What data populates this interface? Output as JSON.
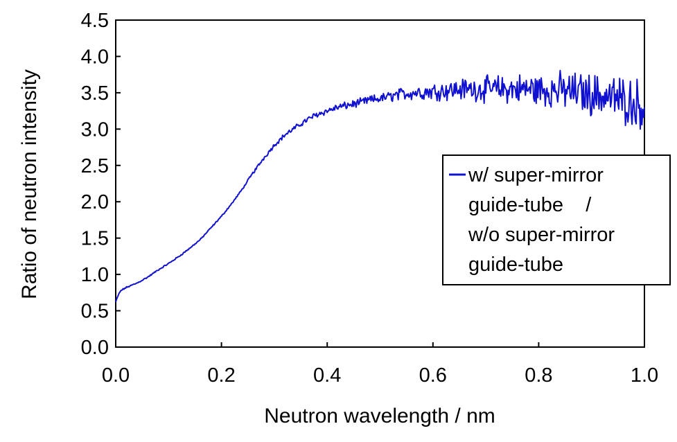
{
  "chart_data": {
    "type": "line",
    "title": "",
    "xlabel": "Neutron wavelength / nm",
    "ylabel": "Ratio of neutron intensity",
    "xlim": [
      0.0,
      1.0
    ],
    "ylim": [
      0.0,
      4.5
    ],
    "xticks": [
      "0.0",
      "0.2",
      "0.4",
      "0.6",
      "0.8",
      "1.0"
    ],
    "yticks": [
      "0.0",
      "0.5",
      "1.0",
      "1.5",
      "2.0",
      "2.5",
      "3.0",
      "3.5",
      "4.0",
      "4.5"
    ],
    "grid": false,
    "legend_position": "right",
    "legend_lines": [
      "w/ super-mirror",
      "guide-tube    /",
      "w/o super-mirror",
      "guide-tube"
    ],
    "series": [
      {
        "color": "#1010d0",
        "noise": "increases with wavelength",
        "x": [
          0.0,
          0.005,
          0.01,
          0.02,
          0.04,
          0.06,
          0.08,
          0.1,
          0.12,
          0.14,
          0.16,
          0.18,
          0.2,
          0.22,
          0.24,
          0.26,
          0.28,
          0.3,
          0.32,
          0.34,
          0.36,
          0.38,
          0.4,
          0.42,
          0.44,
          0.46,
          0.48,
          0.5,
          0.52,
          0.54,
          0.56,
          0.58,
          0.6,
          0.62,
          0.64,
          0.66,
          0.68,
          0.7,
          0.72,
          0.74,
          0.76,
          0.78,
          0.8,
          0.82,
          0.84,
          0.86,
          0.88,
          0.9,
          0.92,
          0.94,
          0.96,
          0.98,
          1.0
        ],
        "y": [
          0.62,
          0.72,
          0.78,
          0.82,
          0.88,
          0.96,
          1.06,
          1.15,
          1.25,
          1.36,
          1.48,
          1.64,
          1.8,
          1.98,
          2.18,
          2.4,
          2.6,
          2.78,
          2.92,
          3.02,
          3.12,
          3.2,
          3.25,
          3.3,
          3.33,
          3.36,
          3.4,
          3.42,
          3.45,
          3.48,
          3.5,
          3.51,
          3.52,
          3.53,
          3.54,
          3.55,
          3.55,
          3.55,
          3.55,
          3.55,
          3.55,
          3.55,
          3.54,
          3.54,
          3.53,
          3.52,
          3.5,
          3.48,
          3.46,
          3.43,
          3.4,
          3.37,
          3.33
        ]
      }
    ]
  }
}
